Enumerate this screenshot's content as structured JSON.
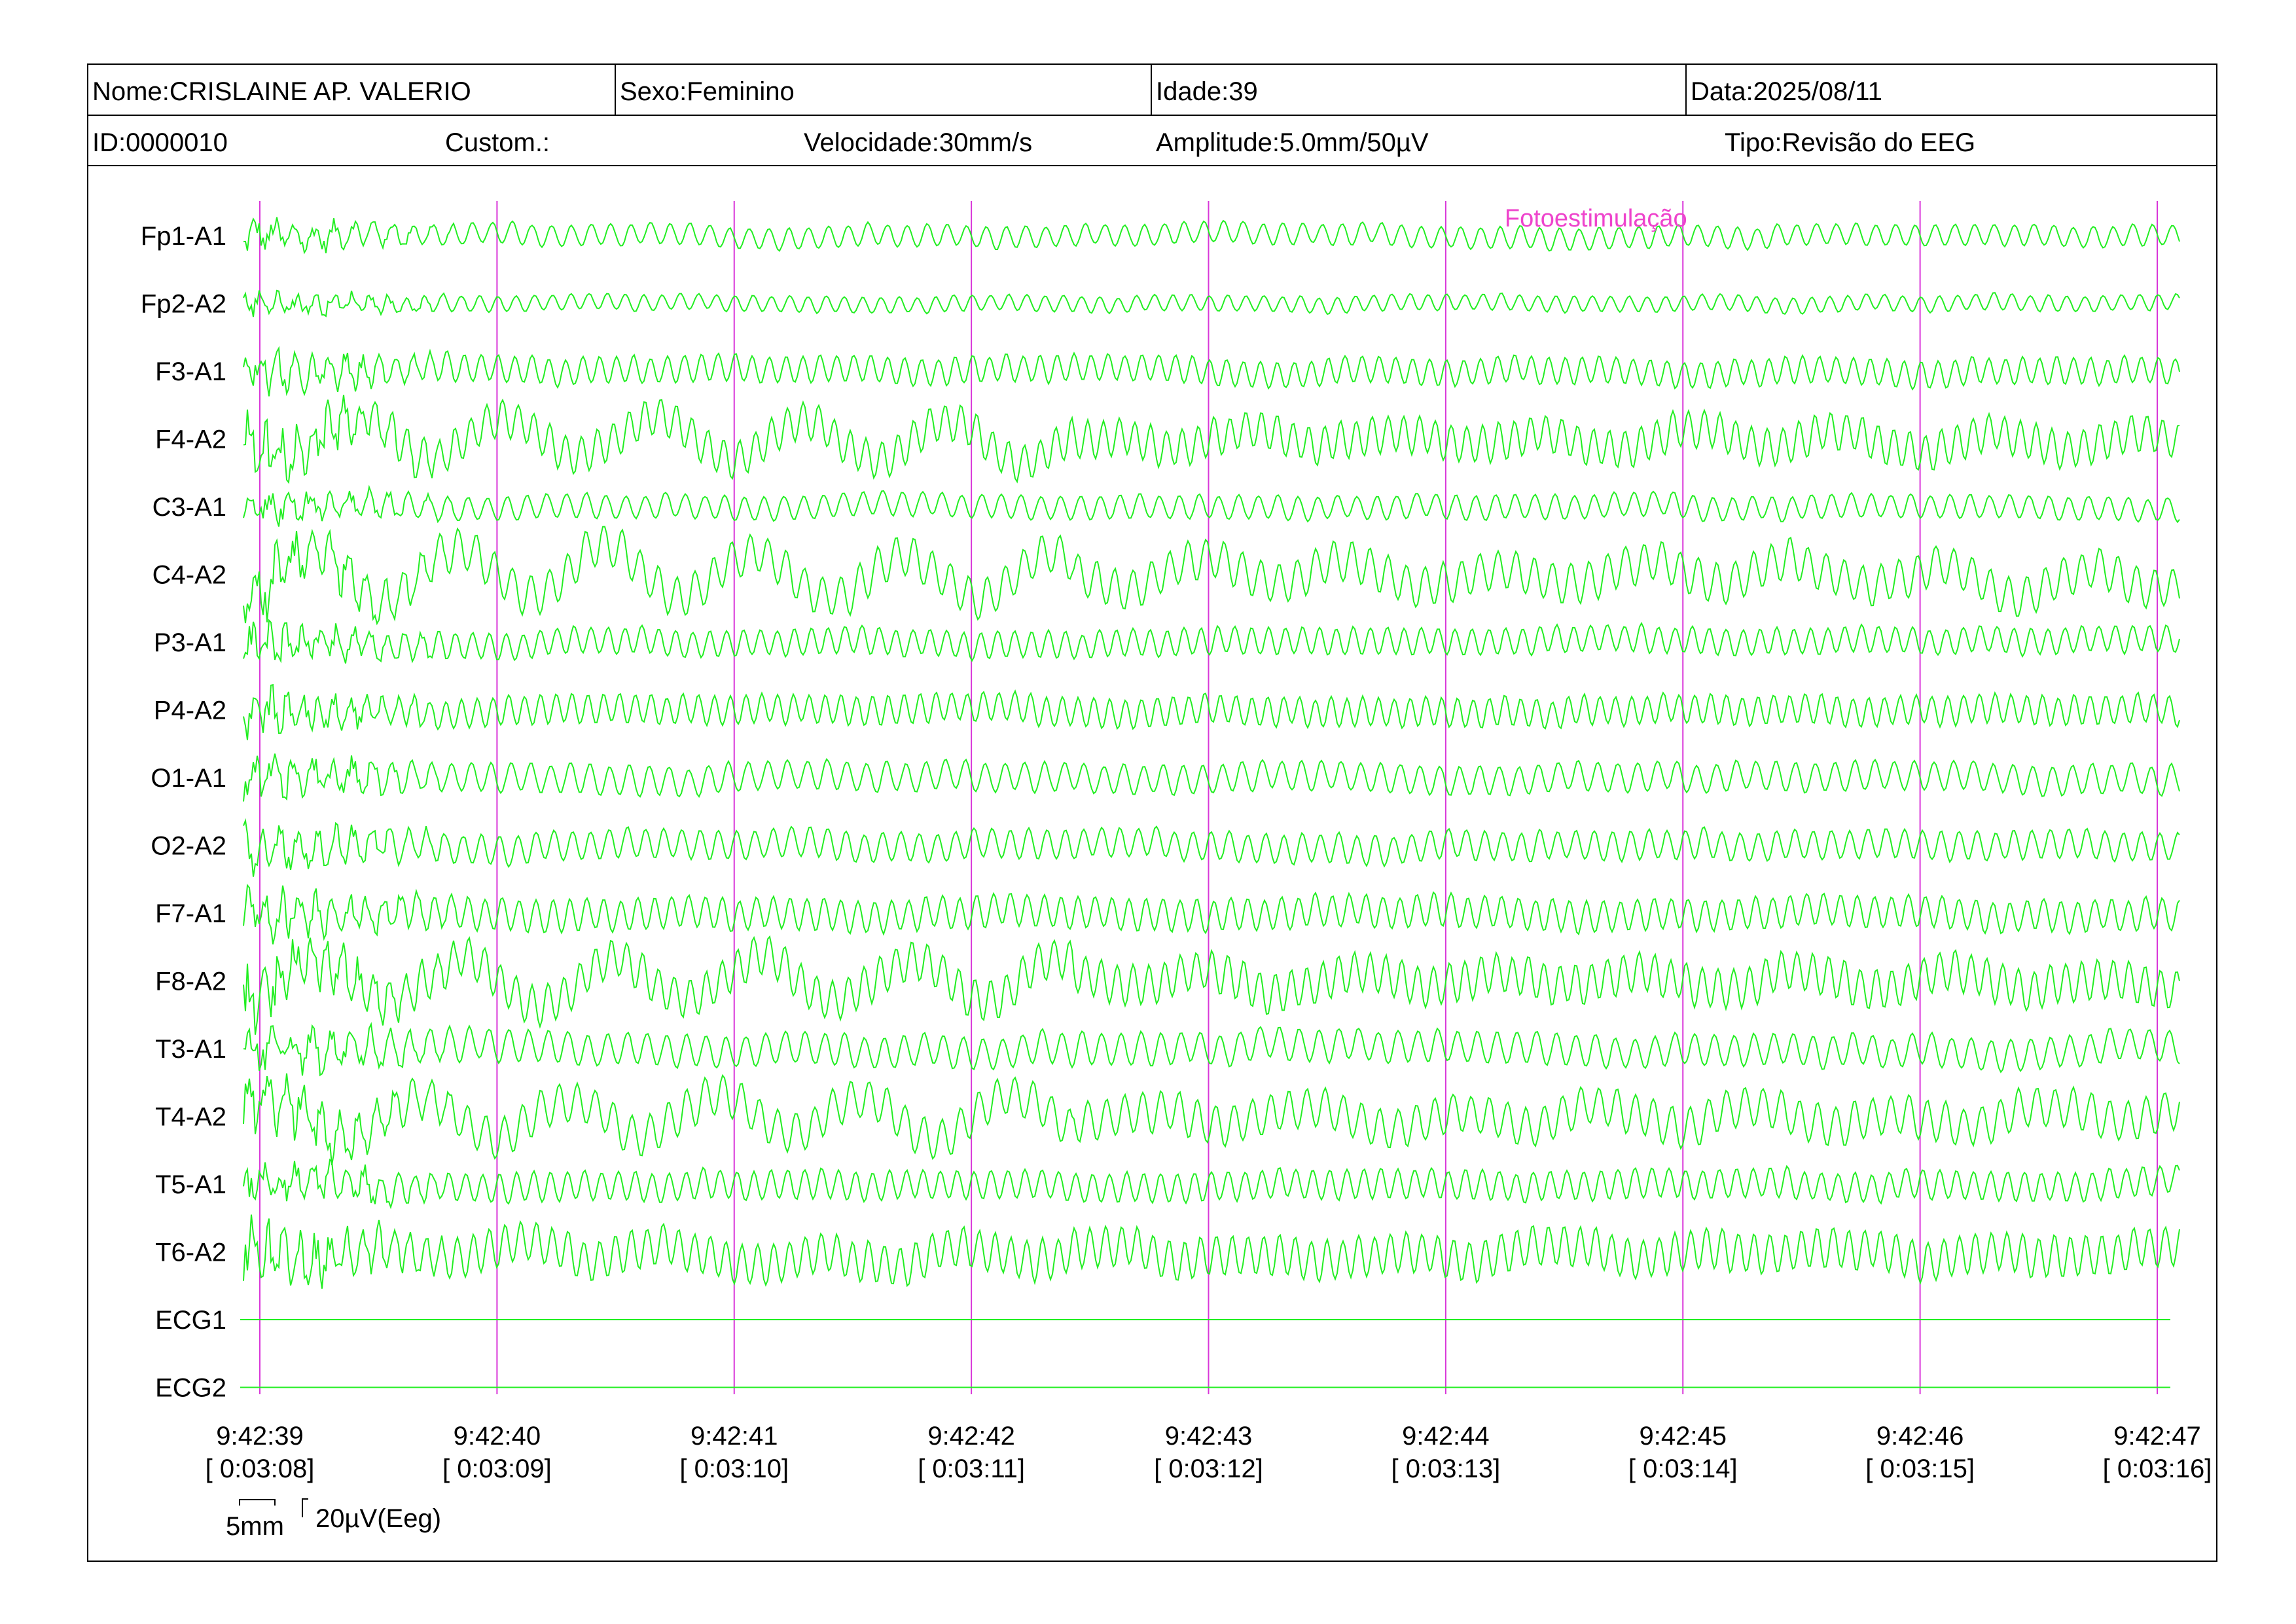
{
  "header": {
    "nome": "Nome:CRISLAINE AP. VALERIO",
    "sexo": "Sexo:Feminino",
    "idade": "Idade:39",
    "data": "Data:2025/08/11",
    "id": "ID:0000010",
    "custom": "Custom.:",
    "velocidade": "Velocidade:30mm/s",
    "amplitude": "Amplitude:5.0mm/50µV",
    "tipo": "Tipo:Revisão do EEG"
  },
  "colors": {
    "trace": "#22ee22",
    "marker": "#d936d9",
    "annotation": "#ee44cc",
    "text": "#000000"
  },
  "chart_data": {
    "type": "line",
    "description_kind": "multichannel EEG trace review page",
    "channels": [
      "Fp1-A1",
      "Fp2-A2",
      "F3-A1",
      "F4-A2",
      "C3-A1",
      "C4-A2",
      "P3-A1",
      "P4-A2",
      "O1-A1",
      "O2-A2",
      "F7-A1",
      "F8-A2",
      "T3-A1",
      "T4-A2",
      "T5-A1",
      "T6-A2",
      "ECG1",
      "ECG2"
    ],
    "time_ticks": [
      {
        "clock": "9:42:39",
        "elapsed": "[ 0:03:08]"
      },
      {
        "clock": "9:42:40",
        "elapsed": "[ 0:03:09]"
      },
      {
        "clock": "9:42:41",
        "elapsed": "[ 0:03:10]"
      },
      {
        "clock": "9:42:42",
        "elapsed": "[ 0:03:11]"
      },
      {
        "clock": "9:42:43",
        "elapsed": "[ 0:03:12]"
      },
      {
        "clock": "9:42:44",
        "elapsed": "[ 0:03:13]"
      },
      {
        "clock": "9:42:45",
        "elapsed": "[ 0:03:14]"
      },
      {
        "clock": "9:42:46",
        "elapsed": "[ 0:03:15]"
      },
      {
        "clock": "9:42:47",
        "elapsed": "[ 0:03:16]"
      }
    ],
    "x_range_seconds": [
      0,
      8
    ],
    "annotations": [
      {
        "text": "Fotoestimulação",
        "time": "9:42:44"
      }
    ],
    "scale": {
      "time_label": "5mm",
      "amp_label": "20µV(Eeg)"
    },
    "flat_channels": [
      "ECG1",
      "ECG2"
    ],
    "grid": false,
    "legend": "none"
  }
}
